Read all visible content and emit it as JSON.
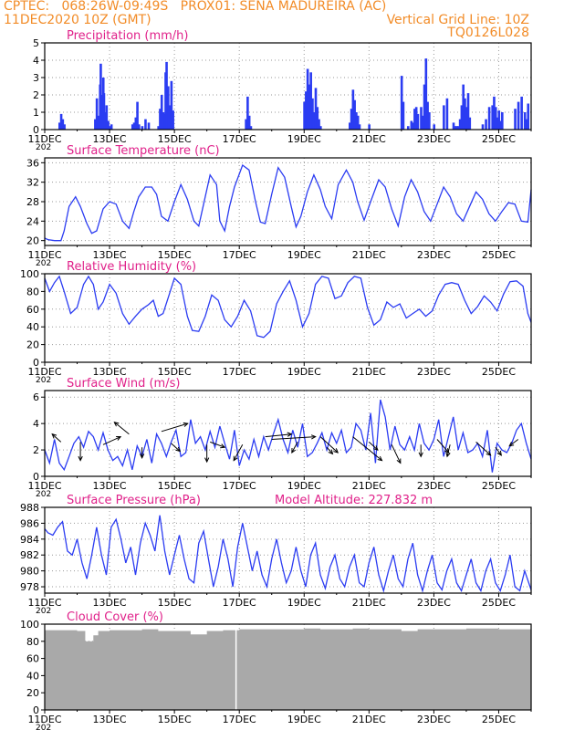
{
  "header": {
    "line1_left": "CPTEC:   068:26W-09:49S   PROX01: SENA MADUREIRA (AC)",
    "line2_left": "11DEC2020 10Z (GMT)",
    "line2_right": "Vertical Grid Line: 10Z",
    "line3_right": "TQ0126L028"
  },
  "colors": {
    "header": "#f28c28",
    "title": "#e0218a",
    "line": "#2b3cf2",
    "bar": "#2b3cf2",
    "cloud": "#a9a9a9",
    "wind_arrow": "#000000",
    "grid": "#9a9a9a"
  },
  "x_labels": [
    "11DEC",
    "13DEC",
    "15DEC",
    "17DEC",
    "19DEC",
    "21DEC",
    "23DEC",
    "25DEC"
  ],
  "x_year_stub": "202",
  "chart_data": [
    {
      "type": "bar",
      "title": "Precipitation (mm/h)",
      "ylim": [
        0,
        5
      ],
      "yticks": [
        0,
        1,
        2,
        3,
        4,
        5
      ],
      "x_days": [
        0.45,
        0.5,
        0.55,
        0.6,
        1.55,
        1.6,
        1.65,
        1.7,
        1.72,
        1.75,
        1.78,
        1.8,
        1.82,
        1.85,
        1.9,
        1.95,
        2.0,
        2.05,
        2.7,
        2.75,
        2.8,
        2.85,
        2.9,
        3.0,
        3.1,
        3.2,
        3.5,
        3.55,
        3.6,
        3.65,
        3.7,
        3.72,
        3.75,
        3.8,
        3.85,
        3.9,
        3.95,
        6.2,
        6.25,
        6.3,
        6.35,
        8.0,
        8.05,
        8.1,
        8.15,
        8.2,
        8.25,
        8.3,
        8.35,
        8.4,
        8.45,
        8.5,
        9.4,
        9.45,
        9.5,
        9.55,
        9.6,
        9.65,
        9.7,
        10.0,
        11.0,
        11.05,
        11.2,
        11.3,
        11.35,
        11.4,
        11.45,
        11.5,
        11.6,
        11.65,
        11.7,
        11.75,
        11.8,
        11.85,
        12.0,
        12.3,
        12.4,
        12.6,
        12.65,
        12.7,
        12.75,
        12.8,
        12.85,
        12.9,
        12.95,
        13.0,
        13.05,
        13.1,
        13.5,
        13.6,
        13.7,
        13.8,
        13.85,
        13.9,
        13.95,
        14.0,
        14.05,
        14.1,
        14.5,
        14.6,
        14.7,
        14.8,
        14.85,
        14.9
      ],
      "values": [
        0.4,
        0.9,
        0.6,
        0.3,
        0.6,
        1.8,
        0.8,
        2.6,
        3.8,
        2.0,
        1.2,
        3.0,
        2.1,
        1.0,
        1.4,
        0.5,
        0.2,
        0.3,
        0.3,
        0.4,
        0.7,
        1.6,
        0.3,
        0.2,
        0.6,
        0.4,
        0.2,
        1.2,
        2.0,
        1.0,
        0.9,
        3.3,
        3.9,
        2.5,
        1.4,
        2.8,
        1.1,
        0.6,
        1.9,
        0.8,
        0.2,
        1.6,
        2.2,
        3.5,
        2.6,
        3.3,
        1.8,
        1.0,
        2.4,
        1.3,
        0.6,
        0.2,
        0.4,
        1.2,
        2.3,
        1.7,
        1.0,
        0.8,
        0.3,
        0.3,
        3.1,
        1.6,
        0.2,
        0.5,
        0.4,
        1.2,
        1.3,
        0.9,
        1.3,
        0.8,
        2.6,
        4.1,
        1.6,
        1.0,
        0.3,
        1.4,
        1.8,
        0.4,
        0.2,
        0.2,
        0.2,
        0.6,
        1.4,
        2.6,
        1.8,
        1.3,
        2.1,
        0.7,
        0.3,
        0.6,
        1.3,
        1.4,
        1.9,
        1.3,
        0.7,
        1.1,
        0.5,
        1.0,
        1.2,
        1.6,
        1.9,
        1.0,
        0.6,
        1.5
      ]
    },
    {
      "type": "line",
      "title": "Surface Temperature (nC)",
      "ylim": [
        19,
        37
      ],
      "yticks": [
        20,
        24,
        28,
        32,
        36
      ],
      "x": [
        0,
        0.1,
        0.3,
        0.5,
        0.6,
        0.75,
        0.95,
        1.1,
        1.3,
        1.45,
        1.6,
        1.8,
        2.0,
        2.2,
        2.4,
        2.6,
        2.75,
        2.9,
        3.1,
        3.3,
        3.45,
        3.6,
        3.8,
        4.0,
        4.2,
        4.4,
        4.6,
        4.75,
        4.9,
        5.1,
        5.3,
        5.4,
        5.55,
        5.7,
        5.85,
        6.1,
        6.3,
        6.5,
        6.65,
        6.8,
        7.0,
        7.2,
        7.4,
        7.6,
        7.75,
        7.9,
        8.1,
        8.3,
        8.5,
        8.65,
        8.85,
        9.05,
        9.3,
        9.5,
        9.65,
        9.85,
        10.05,
        10.3,
        10.5,
        10.7,
        10.9,
        11.1,
        11.3,
        11.5,
        11.7,
        11.9,
        12.1,
        12.3,
        12.5,
        12.7,
        12.9,
        13.1,
        13.3,
        13.5,
        13.7,
        13.9,
        14.1,
        14.3,
        14.5,
        14.7,
        14.9,
        15.0
      ],
      "y": [
        20.5,
        20.2,
        20.0,
        20.0,
        22,
        27,
        29,
        27,
        23.5,
        21.5,
        22,
        26.5,
        28,
        27.5,
        24,
        22.5,
        26,
        29,
        31,
        31,
        29.5,
        25,
        24,
        28,
        31.5,
        28.5,
        24,
        23,
        27.5,
        33.5,
        31.5,
        24,
        22,
        27,
        31,
        35.5,
        34.5,
        28,
        23.8,
        23.5,
        29.5,
        35,
        33,
        27,
        22.8,
        25,
        30,
        33.5,
        30.5,
        27,
        24.5,
        31.5,
        34.5,
        32,
        28,
        24.2,
        28,
        32.5,
        31,
        26.5,
        23,
        29,
        32.5,
        30,
        26,
        24,
        27.5,
        31,
        29,
        25.5,
        24,
        27,
        30,
        28.5,
        25.5,
        24,
        26,
        27.8,
        27.5,
        24,
        23.8,
        30.5
      ]
    },
    {
      "type": "line",
      "title": "Relative Humidity (%)",
      "ylim": [
        0,
        100
      ],
      "yticks": [
        0,
        20,
        40,
        60,
        80,
        100
      ],
      "x": [
        0,
        0.15,
        0.3,
        0.45,
        0.6,
        0.8,
        1.0,
        1.2,
        1.35,
        1.5,
        1.65,
        1.8,
        2.0,
        2.2,
        2.4,
        2.6,
        2.8,
        3.0,
        3.2,
        3.35,
        3.5,
        3.65,
        3.8,
        4.0,
        4.2,
        4.4,
        4.55,
        4.75,
        4.95,
        5.15,
        5.35,
        5.55,
        5.75,
        5.95,
        6.15,
        6.35,
        6.55,
        6.75,
        6.95,
        7.15,
        7.35,
        7.55,
        7.75,
        7.95,
        8.15,
        8.35,
        8.55,
        8.75,
        8.95,
        9.15,
        9.35,
        9.55,
        9.75,
        9.95,
        10.15,
        10.35,
        10.55,
        10.75,
        10.95,
        11.15,
        11.35,
        11.55,
        11.75,
        11.95,
        12.15,
        12.35,
        12.55,
        12.75,
        12.95,
        13.15,
        13.35,
        13.55,
        13.75,
        13.95,
        14.15,
        14.35,
        14.55,
        14.75,
        14.9,
        15.0
      ],
      "y": [
        95,
        80,
        90,
        97,
        80,
        55,
        62,
        88,
        97,
        88,
        60,
        68,
        88,
        78,
        55,
        43,
        52,
        60,
        65,
        70,
        52,
        55,
        72,
        95,
        88,
        52,
        36,
        35,
        52,
        76,
        70,
        48,
        40,
        52,
        70,
        58,
        30,
        28,
        35,
        66,
        80,
        92,
        70,
        40,
        55,
        88,
        97,
        95,
        72,
        75,
        90,
        97,
        95,
        62,
        42,
        48,
        68,
        62,
        66,
        50,
        55,
        60,
        52,
        58,
        76,
        88,
        90,
        88,
        70,
        55,
        63,
        75,
        68,
        58,
        77,
        91,
        92,
        86,
        55,
        45
      ]
    },
    {
      "type": "line",
      "title": "Surface Wind (m/s)",
      "ylim": [
        0,
        6.5
      ],
      "yticks": [
        0,
        2,
        4,
        6
      ],
      "x": [
        0,
        0.15,
        0.3,
        0.45,
        0.6,
        0.75,
        0.9,
        1.05,
        1.2,
        1.35,
        1.5,
        1.65,
        1.8,
        1.95,
        2.1,
        2.25,
        2.4,
        2.55,
        2.7,
        2.85,
        3.0,
        3.15,
        3.3,
        3.45,
        3.6,
        3.75,
        3.9,
        4.05,
        4.2,
        4.35,
        4.5,
        4.65,
        4.8,
        4.95,
        5.1,
        5.25,
        5.4,
        5.55,
        5.7,
        5.85,
        6.0,
        6.15,
        6.3,
        6.45,
        6.6,
        6.75,
        6.9,
        7.05,
        7.2,
        7.35,
        7.5,
        7.65,
        7.8,
        7.95,
        8.1,
        8.25,
        8.4,
        8.55,
        8.7,
        8.85,
        9.0,
        9.15,
        9.3,
        9.45,
        9.6,
        9.75,
        9.9,
        10.05,
        10.2,
        10.35,
        10.5,
        10.65,
        10.8,
        10.95,
        11.1,
        11.25,
        11.4,
        11.55,
        11.7,
        11.85,
        12.0,
        12.15,
        12.3,
        12.45,
        12.6,
        12.75,
        12.9,
        13.05,
        13.2,
        13.35,
        13.5,
        13.65,
        13.8,
        13.95,
        14.1,
        14.25,
        14.4,
        14.55,
        14.7,
        14.85,
        15.0
      ],
      "y": [
        2.0,
        1.0,
        2.8,
        1.0,
        0.5,
        1.5,
        2.5,
        3.0,
        2.2,
        3.4,
        3.0,
        2.0,
        3.3,
        2.0,
        1.2,
        1.5,
        0.8,
        2.0,
        0.5,
        2.3,
        1.5,
        2.8,
        1.0,
        3.2,
        2.5,
        1.5,
        2.6,
        3.5,
        1.5,
        1.8,
        4.3,
        2.5,
        3.0,
        2.0,
        3.4,
        2.2,
        3.8,
        2.5,
        1.3,
        3.5,
        0.8,
        2.0,
        1.3,
        2.8,
        1.5,
        3.0,
        2.0,
        3.2,
        4.3,
        2.8,
        1.8,
        3.5,
        2.2,
        4.0,
        1.5,
        1.8,
        2.5,
        3.3,
        2.0,
        3.3,
        2.5,
        3.5,
        1.8,
        2.2,
        4.0,
        3.5,
        2.0,
        4.8,
        1.0,
        5.8,
        4.5,
        2.0,
        3.8,
        2.4,
        2.0,
        3.0,
        2.0,
        4.0,
        2.5,
        2.0,
        2.8,
        4.3,
        1.5,
        3.0,
        4.5,
        2.0,
        3.3,
        1.8,
        2.0,
        2.5,
        1.5,
        3.5,
        0.3,
        2.5,
        2.0,
        1.8,
        2.5,
        3.5,
        4.0,
        2.5,
        1.3
      ],
      "arrows": [
        {
          "x": 0.5,
          "y": 2.6,
          "dx": -0.3,
          "dy": 0.6
        },
        {
          "x": 1.1,
          "y": 2.6,
          "dx": 0.0,
          "dy": -1.4
        },
        {
          "x": 1.8,
          "y": 2.4,
          "dx": 0.6,
          "dy": 0.6
        },
        {
          "x": 2.6,
          "y": 3.2,
          "dx": -0.5,
          "dy": 0.9
        },
        {
          "x": 3.0,
          "y": 2.2,
          "dx": 0.0,
          "dy": -0.8
        },
        {
          "x": 3.6,
          "y": 3.4,
          "dx": 0.9,
          "dy": 0.6
        },
        {
          "x": 3.9,
          "y": 2.5,
          "dx": 0.3,
          "dy": -0.6
        },
        {
          "x": 5.0,
          "y": 2.4,
          "dx": 0.0,
          "dy": -1.3
        },
        {
          "x": 5.1,
          "y": 2.6,
          "dx": 0.5,
          "dy": -0.4
        },
        {
          "x": 6.1,
          "y": 2.4,
          "dx": -0.3,
          "dy": -1.2
        },
        {
          "x": 6.8,
          "y": 3.0,
          "dx": 0.9,
          "dy": 0.2
        },
        {
          "x": 7.0,
          "y": 2.8,
          "dx": 1.5,
          "dy": 0.2
        },
        {
          "x": 7.8,
          "y": 2.6,
          "dx": -0.2,
          "dy": -0.8
        },
        {
          "x": 8.5,
          "y": 3.0,
          "dx": 0.6,
          "dy": -1.2
        },
        {
          "x": 8.7,
          "y": 2.2,
          "dx": 0.2,
          "dy": -0.5
        },
        {
          "x": 9.5,
          "y": 3.0,
          "dx": 1.0,
          "dy": -1.8
        },
        {
          "x": 10.0,
          "y": 2.6,
          "dx": 0.3,
          "dy": -0.6
        },
        {
          "x": 10.7,
          "y": 2.4,
          "dx": 0.3,
          "dy": -1.4
        },
        {
          "x": 11.6,
          "y": 2.4,
          "dx": 0.0,
          "dy": -0.9
        },
        {
          "x": 12.1,
          "y": 2.8,
          "dx": 0.4,
          "dy": -1.0
        },
        {
          "x": 12.5,
          "y": 2.4,
          "dx": -0.1,
          "dy": -0.9
        },
        {
          "x": 13.3,
          "y": 2.6,
          "dx": 0.5,
          "dy": -1.0
        },
        {
          "x": 13.9,
          "y": 2.2,
          "dx": 0.2,
          "dy": -0.6
        },
        {
          "x": 14.6,
          "y": 2.8,
          "dx": -0.3,
          "dy": -0.5
        }
      ]
    },
    {
      "type": "line",
      "title": "Surface Pressure (hPa)",
      "subtitle": "Model Altitude: 227.832 m",
      "ylim": [
        977.2,
        988
      ],
      "yticks": [
        978,
        980,
        982,
        984,
        986,
        988
      ],
      "x": [
        0,
        0.1,
        0.25,
        0.4,
        0.55,
        0.7,
        0.85,
        1.0,
        1.15,
        1.3,
        1.45,
        1.6,
        1.75,
        1.9,
        2.05,
        2.2,
        2.35,
        2.5,
        2.65,
        2.8,
        2.95,
        3.1,
        3.25,
        3.4,
        3.55,
        3.7,
        3.85,
        4.0,
        4.15,
        4.3,
        4.45,
        4.6,
        4.75,
        4.9,
        5.05,
        5.2,
        5.35,
        5.5,
        5.65,
        5.8,
        5.95,
        6.1,
        6.25,
        6.4,
        6.55,
        6.7,
        6.85,
        7.0,
        7.15,
        7.3,
        7.45,
        7.6,
        7.75,
        7.9,
        8.05,
        8.2,
        8.35,
        8.5,
        8.65,
        8.8,
        8.95,
        9.1,
        9.25,
        9.4,
        9.55,
        9.7,
        9.85,
        10.0,
        10.15,
        10.3,
        10.45,
        10.6,
        10.75,
        10.9,
        11.05,
        11.2,
        11.35,
        11.5,
        11.65,
        11.8,
        11.95,
        12.1,
        12.25,
        12.4,
        12.55,
        12.7,
        12.85,
        13.0,
        13.15,
        13.3,
        13.45,
        13.6,
        13.75,
        13.9,
        14.05,
        14.2,
        14.35,
        14.5,
        14.65,
        14.8,
        15.0
      ],
      "y": [
        985.3,
        984.8,
        984.5,
        985.5,
        986.2,
        982.5,
        982.0,
        984.0,
        981.0,
        979.0,
        982.0,
        985.5,
        982.0,
        979.5,
        985.5,
        986.5,
        984.0,
        981.0,
        983.0,
        979.5,
        983.5,
        986.0,
        984.5,
        982.5,
        987.0,
        982.5,
        979.5,
        982.0,
        984.5,
        981.5,
        979.0,
        978.5,
        983.5,
        985.0,
        981.5,
        978.0,
        980.5,
        984.0,
        981.5,
        978.0,
        983.0,
        986.0,
        983.0,
        980.0,
        982.5,
        979.5,
        978.0,
        981.5,
        984.0,
        981.0,
        978.5,
        980.0,
        983.0,
        980.0,
        978.0,
        982.0,
        983.5,
        979.5,
        977.8,
        980.5,
        982.0,
        979.0,
        978.0,
        980.5,
        982.0,
        978.5,
        978.0,
        981.0,
        983.0,
        979.5,
        977.5,
        980.0,
        982.0,
        979.0,
        978.0,
        981.5,
        983.5,
        979.5,
        977.5,
        980.0,
        982.0,
        978.5,
        977.6,
        980.0,
        981.5,
        978.5,
        977.5,
        979.5,
        981.5,
        978.5,
        977.5,
        980.0,
        981.5,
        978.5,
        977.5,
        979.5,
        982.0,
        978.0,
        977.5,
        980.0,
        977.6
      ]
    },
    {
      "type": "bar",
      "title": "Cloud Cover (%)",
      "ylim": [
        0,
        100
      ],
      "yticks": [
        0,
        20,
        40,
        60,
        80,
        100
      ],
      "x_days": [
        0.0,
        0.5,
        1.0,
        1.25,
        1.5,
        1.65,
        2.0,
        2.5,
        3.0,
        3.5,
        4.0,
        4.5,
        5.0,
        5.5,
        6.0,
        6.5,
        7.0,
        7.5,
        8.0,
        8.5,
        9.0,
        9.5,
        10.0,
        10.5,
        11.0,
        11.5,
        12.0,
        12.5,
        13.0,
        13.5,
        14.0,
        14.5
      ],
      "values": [
        93,
        93,
        92,
        80,
        87,
        92,
        93,
        93,
        94,
        92,
        92,
        88,
        92,
        93,
        94,
        94,
        94,
        94,
        95,
        94,
        94,
        95,
        94,
        94,
        92,
        94,
        94,
        94,
        95,
        95,
        94,
        94
      ]
    }
  ]
}
